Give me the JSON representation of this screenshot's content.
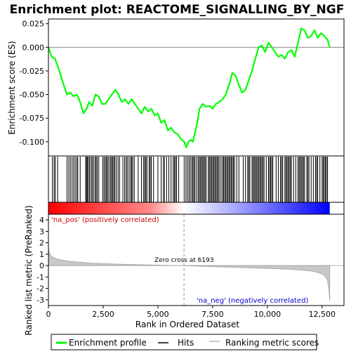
{
  "chart_data": {
    "type": "line",
    "title": "Enrichment plot: REACTOME_SIGNALLING_BY_NGF",
    "top_panel": {
      "ylabel": "Enrichment score (ES)",
      "ylim": [
        -0.115,
        0.03
      ],
      "yticks": [
        0.025,
        0.0,
        -0.025,
        -0.05,
        -0.075,
        -0.1
      ],
      "ytick_labels": [
        "0.025",
        "0.000",
        "-0.025",
        "-0.050",
        "-0.075",
        "-0.100"
      ],
      "grid": false,
      "line_color": "#00ff00",
      "es_curve": {
        "x": [
          0,
          150,
          300,
          500,
          700,
          850,
          1000,
          1150,
          1300,
          1450,
          1600,
          1750,
          1850,
          2000,
          2150,
          2300,
          2450,
          2600,
          2750,
          2900,
          3050,
          3200,
          3350,
          3500,
          3650,
          3800,
          3950,
          4100,
          4250,
          4400,
          4550,
          4700,
          4850,
          5000,
          5150,
          5300,
          5450,
          5600,
          5750,
          5900,
          6050,
          6200,
          6300,
          6400,
          6500,
          6600,
          6700,
          6800,
          6900,
          7050,
          7200,
          7350,
          7500,
          7650,
          7800,
          7950,
          8100,
          8250,
          8400,
          8550,
          8700,
          8850,
          9000,
          9150,
          9300,
          9450,
          9600,
          9750,
          9900,
          10050,
          10200,
          10350,
          10500,
          10650,
          10800,
          10950,
          11100,
          11250,
          11400,
          11550,
          11700,
          11850,
          12000,
          12150,
          12300,
          12450,
          12600,
          12750,
          12850
        ],
        "y": [
          0.0,
          -0.01,
          -0.012,
          -0.025,
          -0.04,
          -0.05,
          -0.048,
          -0.052,
          -0.05,
          -0.058,
          -0.07,
          -0.065,
          -0.058,
          -0.062,
          -0.05,
          -0.052,
          -0.06,
          -0.06,
          -0.055,
          -0.05,
          -0.045,
          -0.05,
          -0.058,
          -0.055,
          -0.06,
          -0.055,
          -0.06,
          -0.065,
          -0.07,
          -0.063,
          -0.068,
          -0.065,
          -0.072,
          -0.07,
          -0.08,
          -0.077,
          -0.088,
          -0.085,
          -0.09,
          -0.092,
          -0.097,
          -0.1,
          -0.106,
          -0.1,
          -0.098,
          -0.1,
          -0.09,
          -0.08,
          -0.065,
          -0.06,
          -0.063,
          -0.062,
          -0.065,
          -0.06,
          -0.058,
          -0.055,
          -0.05,
          -0.04,
          -0.027,
          -0.03,
          -0.04,
          -0.048,
          -0.045,
          -0.035,
          -0.025,
          -0.012,
          0.0,
          0.002,
          -0.005,
          0.005,
          0.0,
          -0.005,
          -0.01,
          -0.008,
          -0.012,
          -0.005,
          -0.003,
          -0.01,
          0.005,
          0.02,
          0.018,
          0.01,
          0.012,
          0.018,
          0.01,
          0.015,
          0.012,
          0.008,
          0.0
        ]
      }
    },
    "hits_panel": {
      "hit_positions": [
        180,
        260,
        310,
        420,
        850,
        930,
        1000,
        1080,
        1150,
        1220,
        1290,
        1340,
        1450,
        1700,
        1740,
        1780,
        1830,
        1880,
        1950,
        2000,
        2060,
        2130,
        2180,
        2230,
        2300,
        2480,
        2540,
        2600,
        2650,
        2700,
        2760,
        2830,
        2880,
        2930,
        2980,
        3030,
        3100,
        3180,
        3250,
        3400,
        3480,
        3550,
        3600,
        3680,
        3750,
        3800,
        3850,
        3920,
        4100,
        4250,
        4350,
        4400,
        4450,
        4500,
        4600,
        4650,
        4700,
        4800,
        5000,
        5150,
        5250,
        5300,
        5400,
        5500,
        5600,
        5700,
        5750,
        5800,
        5850,
        5950,
        6200,
        6280,
        6350,
        6420,
        6480,
        6550,
        6600,
        6650,
        6700,
        6780,
        6850,
        6900,
        6950,
        7000,
        7050,
        7100,
        7150,
        7200,
        7300,
        7350,
        7400,
        7450,
        7500,
        7550,
        7600,
        7650,
        7700,
        7750,
        7800,
        7880,
        7950,
        8000,
        8050,
        8100,
        8150,
        8200,
        8250,
        8300,
        8350,
        8400,
        8450,
        8500,
        8600,
        8700,
        8900,
        9000,
        9100,
        9150,
        9200,
        9300,
        9350,
        9400,
        9450,
        9500,
        9550,
        9600,
        9650,
        9700,
        9750,
        9800,
        9850,
        9950,
        10050,
        10100,
        10150,
        10200,
        10250,
        10400,
        10500,
        10600,
        10650,
        10700,
        10800,
        10850,
        10900,
        10950,
        11000,
        11050,
        11100,
        11200,
        11300,
        11400,
        11450,
        11500,
        11550,
        11600,
        11650,
        11700,
        11800,
        11850,
        11900,
        12000,
        12100,
        12200,
        12250,
        12300,
        12400,
        12500,
        12550,
        12600,
        12650,
        12700,
        12750
      ],
      "heatmap_colors": [
        "#ff0000",
        "#0000ff"
      ]
    },
    "bottom_panel": {
      "xlabel": "Rank in Ordered Dataset",
      "ylabel": "Ranked list metric (PreRanked)",
      "xlim": [
        0,
        13500
      ],
      "xticks": [
        0,
        2500,
        5000,
        7500,
        10000,
        12500
      ],
      "xtick_labels": [
        "0",
        "2,500",
        "5,000",
        "7,500",
        "10,000",
        "12,500"
      ],
      "ylim": [
        -3.5,
        4.5
      ],
      "yticks": [
        4,
        3,
        2,
        1,
        0,
        -1,
        -2,
        -3
      ],
      "ytick_labels": [
        "4",
        "3",
        "2",
        "1",
        "0",
        "-1",
        "-2",
        "-3"
      ],
      "zero_cross": 6193,
      "zero_cross_label": "Zero cross at 6193",
      "pos_label": "'na_pos' (positively correlated)",
      "neg_label": "'na_neg' (negatively correlated)",
      "pos_color": "#cc0000",
      "neg_color": "#0000cc",
      "metric_curve": {
        "x": [
          0,
          30,
          80,
          150,
          300,
          500,
          800,
          1200,
          2000,
          3000,
          4000,
          5000,
          6193,
          7000,
          8000,
          9000,
          10000,
          11000,
          11500,
          12000,
          12300,
          12500,
          12650,
          12750,
          12820,
          12850
        ],
        "y": [
          1.6,
          1.2,
          0.95,
          0.8,
          0.65,
          0.52,
          0.42,
          0.33,
          0.22,
          0.14,
          0.08,
          0.04,
          0.0,
          -0.06,
          -0.12,
          -0.18,
          -0.25,
          -0.32,
          -0.38,
          -0.48,
          -0.6,
          -0.75,
          -0.95,
          -1.3,
          -2.2,
          -3.1
        ]
      }
    },
    "legend": {
      "items": [
        {
          "label": "Enrichment profile",
          "color": "#00ff00"
        },
        {
          "label": "Hits",
          "color": "#000000"
        },
        {
          "label": "Ranking metric scores",
          "color": "#bbbbbb"
        }
      ]
    }
  }
}
